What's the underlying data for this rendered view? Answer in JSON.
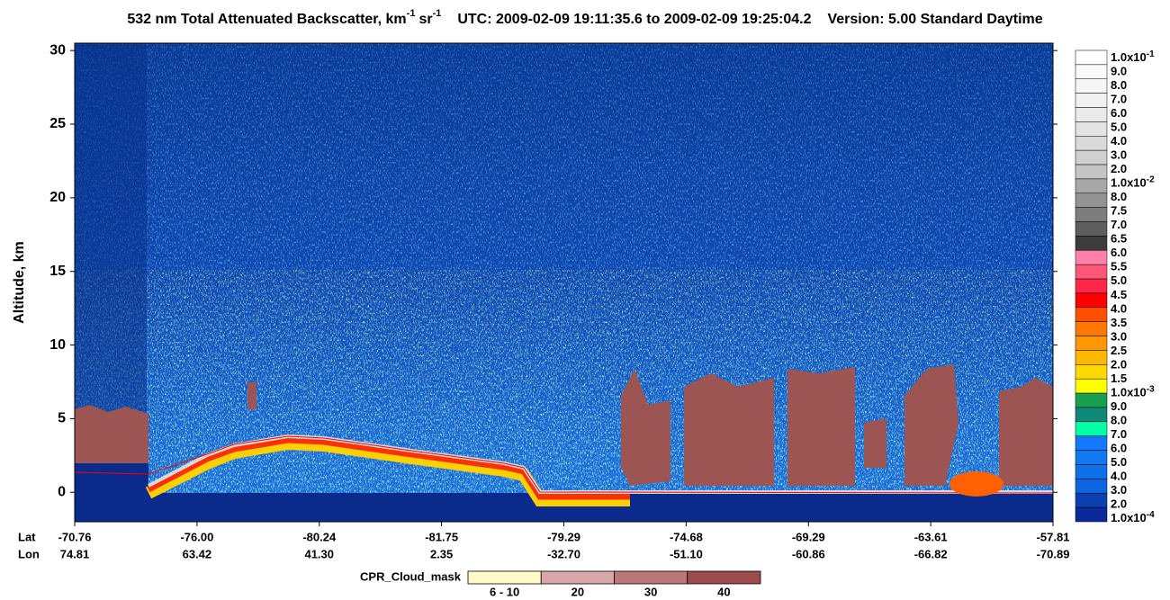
{
  "chart_data": {
    "type": "heatmap",
    "title": {
      "main": "532 nm Total Attenuated Backscatter, km",
      "exp1": "-1",
      "unit2": "sr",
      "exp2": "-1",
      "time": "UTC:  2009-02-09 19:11:35.6  to  2009-02-09 19:25:04.2",
      "version": "Version: 5.00  Standard  Daytime"
    },
    "ylabel": "Altitude, km",
    "ylim": [
      -2,
      30.5
    ],
    "yticks": [
      0,
      5,
      10,
      15,
      20,
      25,
      30
    ],
    "x_row_labels": [
      "Lat",
      "Lon"
    ],
    "lat": [
      "-70.76",
      "-76.00",
      "-80.24",
      "-81.75",
      "-79.29",
      "-74.68",
      "-69.29",
      "-63.61",
      "-57.81"
    ],
    "lon": [
      "74.81",
      "63.42",
      "41.30",
      "2.35",
      "-32.70",
      "-51.10",
      "-60.86",
      "-66.82",
      "-70.89"
    ],
    "colorbar": {
      "labels": [
        {
          "text": "1.0x10",
          "exp": "-1"
        },
        {
          "text": "9.0"
        },
        {
          "text": "8.0"
        },
        {
          "text": "7.0"
        },
        {
          "text": "6.0"
        },
        {
          "text": "5.0"
        },
        {
          "text": "4.0"
        },
        {
          "text": "3.0"
        },
        {
          "text": "2.0"
        },
        {
          "text": "1.0x10",
          "exp": "-2"
        },
        {
          "text": "8.0"
        },
        {
          "text": "7.5"
        },
        {
          "text": "7.0"
        },
        {
          "text": "6.5"
        },
        {
          "text": "6.0"
        },
        {
          "text": "5.5"
        },
        {
          "text": "5.0"
        },
        {
          "text": "4.5"
        },
        {
          "text": "4.0"
        },
        {
          "text": "3.5"
        },
        {
          "text": "3.0"
        },
        {
          "text": "2.5"
        },
        {
          "text": "2.0"
        },
        {
          "text": "1.5"
        },
        {
          "text": "1.0x10",
          "exp": "-3"
        },
        {
          "text": "9.0"
        },
        {
          "text": "8.0"
        },
        {
          "text": "7.0"
        },
        {
          "text": "6.0"
        },
        {
          "text": "5.0"
        },
        {
          "text": "4.0"
        },
        {
          "text": "3.0"
        },
        {
          "text": "2.0"
        },
        {
          "text": "1.0x10",
          "exp": "-4"
        }
      ],
      "colors": [
        "#ffffff",
        "#fbfbfb",
        "#f6f6f6",
        "#f0f0f0",
        "#eaeaea",
        "#e3e3e3",
        "#dadada",
        "#d0d0d0",
        "#c4c4c4",
        "#a8a8a8",
        "#939393",
        "#7d7d7d",
        "#5e5e5e",
        "#3c3c3c",
        "#ff80a8",
        "#ff5878",
        "#ff2848",
        "#ff0000",
        "#ff5000",
        "#ff7800",
        "#ff9800",
        "#ffb800",
        "#ffd800",
        "#ffff00",
        "#18a050",
        "#108878",
        "#00ffa8",
        "#1478ff",
        "#1078f0",
        "#1070e8",
        "#0c64e0",
        "#0a40b0",
        "#0a2898"
      ]
    },
    "cpr_legend": {
      "label": "CPR_Cloud_mask",
      "items": [
        "6 - 10",
        "20",
        "30",
        "40"
      ],
      "colors": [
        "#fffac8",
        "#d8a8a8",
        "#bc7878",
        "#9c4c4c"
      ]
    }
  }
}
